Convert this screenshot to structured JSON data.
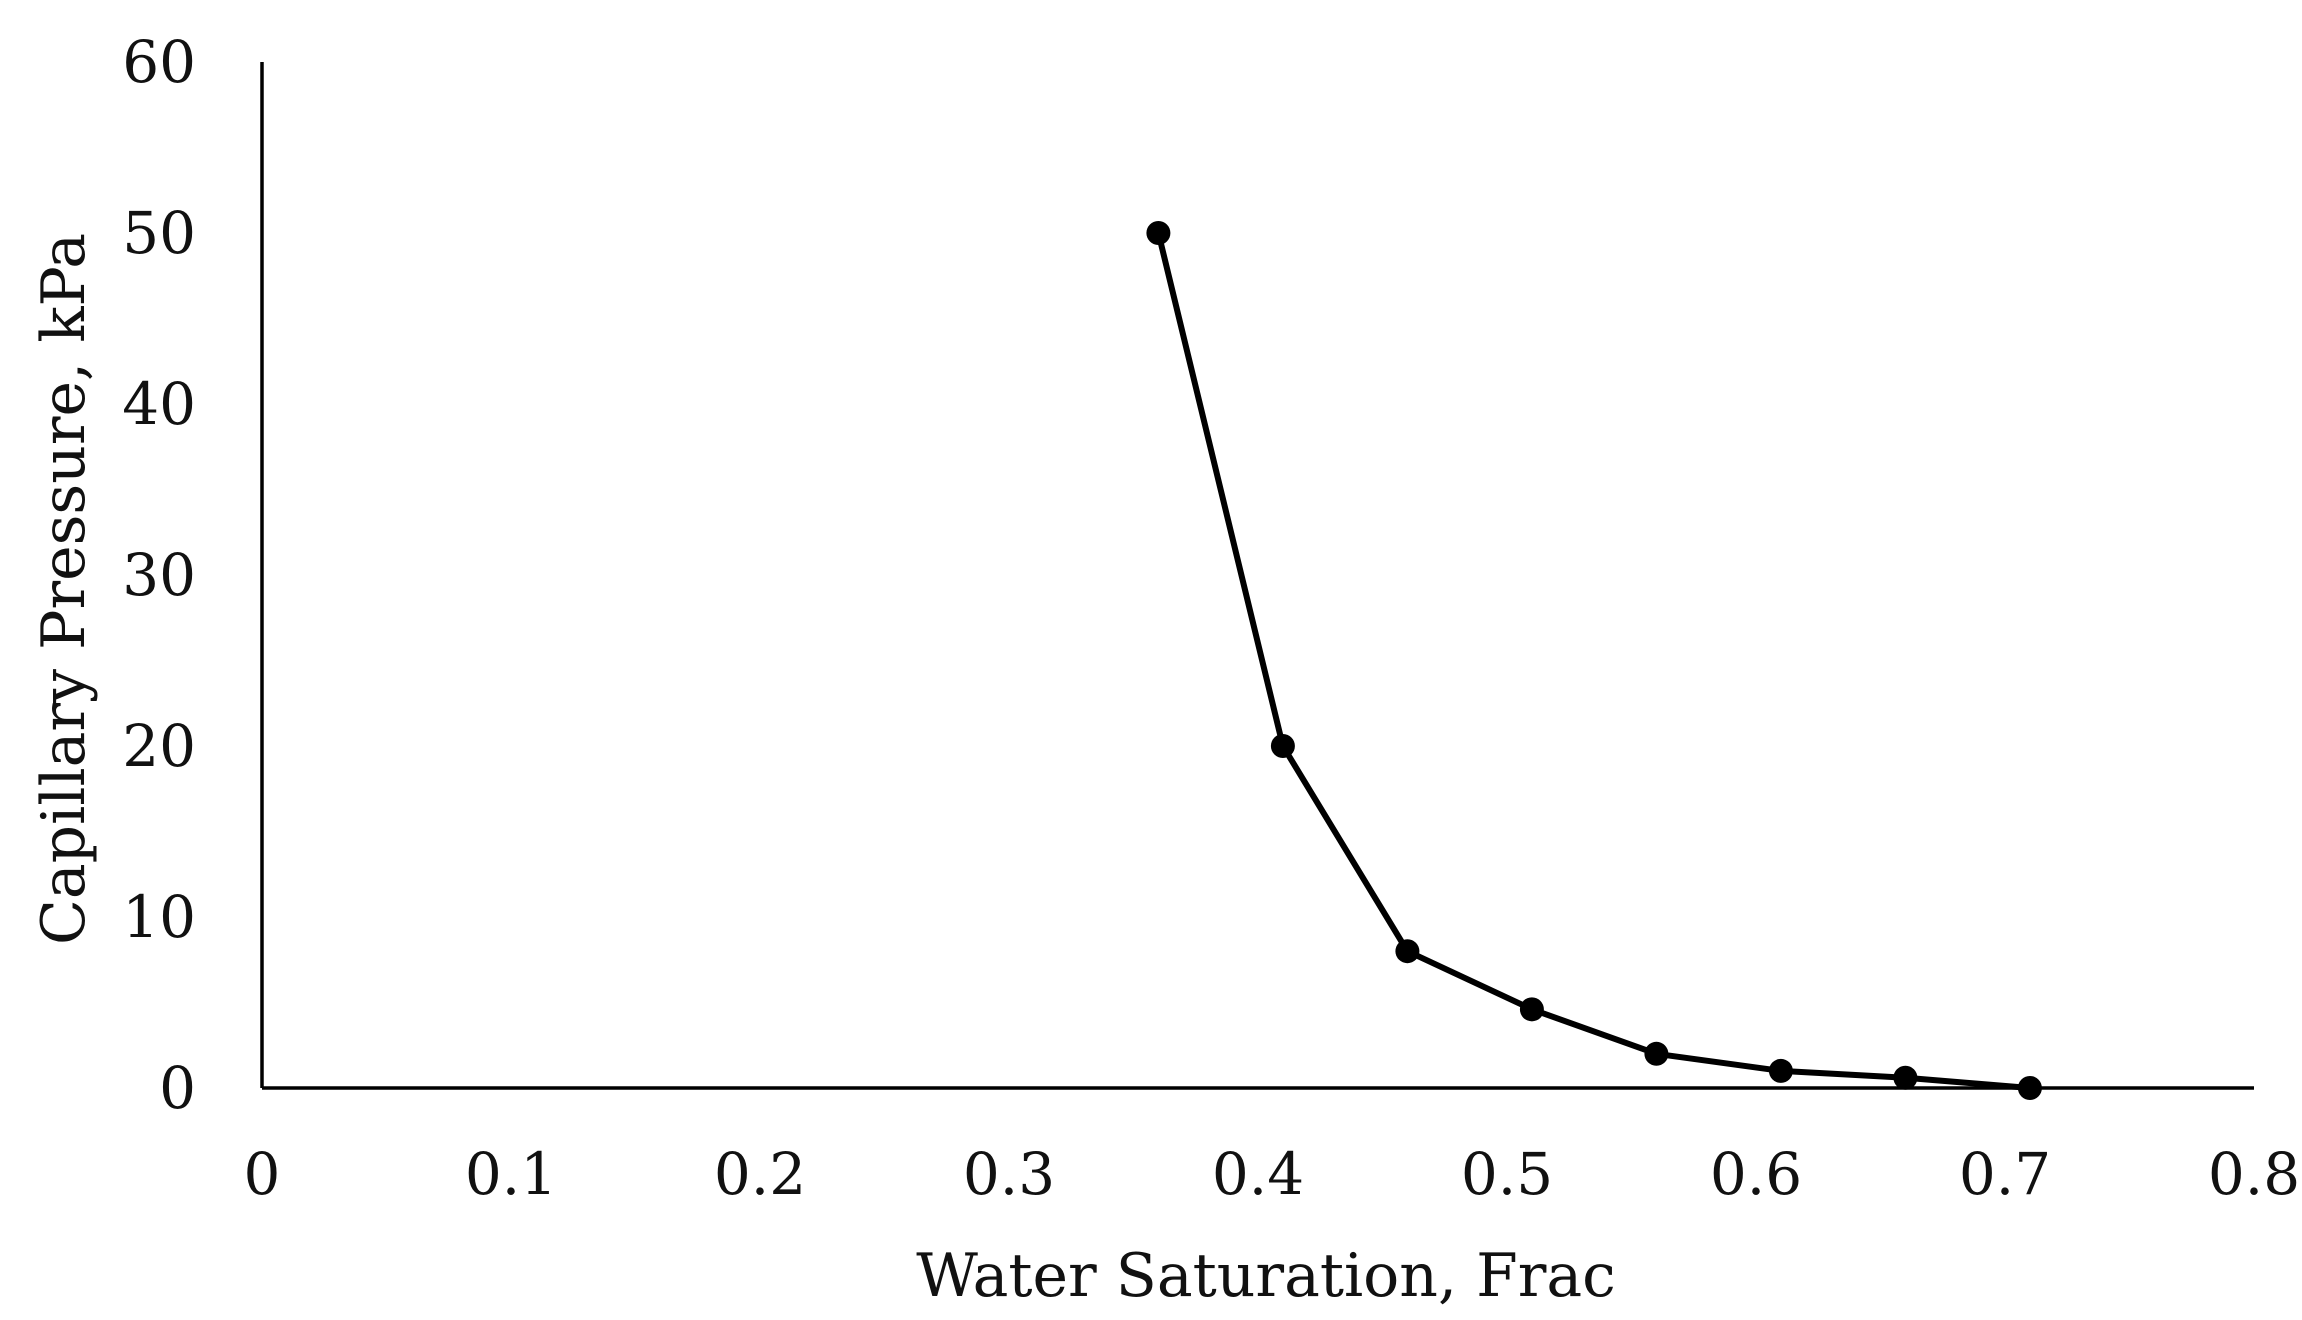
{
  "chart_data": {
    "type": "line",
    "title": "",
    "xlabel": "Water Saturation, Frac",
    "ylabel": "Capillary Pressure, kPa",
    "xlim": [
      0,
      0.8
    ],
    "ylim": [
      0,
      60
    ],
    "x_ticks": [
      0,
      0.1,
      0.2,
      0.3,
      0.4,
      0.5,
      0.6,
      0.7,
      0.8
    ],
    "x_tick_labels": [
      "0",
      "0.1",
      "0.2",
      "0.3",
      "0.4",
      "0.5",
      "0.6",
      "0.7",
      "0.8"
    ],
    "y_ticks": [
      0,
      10,
      20,
      30,
      40,
      50,
      60
    ],
    "y_tick_labels": [
      "0",
      "10",
      "20",
      "30",
      "40",
      "50",
      "60"
    ],
    "grid": false,
    "legend": "none",
    "series": [
      {
        "name": "Capillary Pressure",
        "color": "#000000",
        "x": [
          0.36,
          0.41,
          0.46,
          0.51,
          0.56,
          0.61,
          0.66,
          0.71
        ],
        "y": [
          50,
          20,
          8,
          4.6,
          2.0,
          1.0,
          0.6,
          0
        ]
      }
    ]
  }
}
